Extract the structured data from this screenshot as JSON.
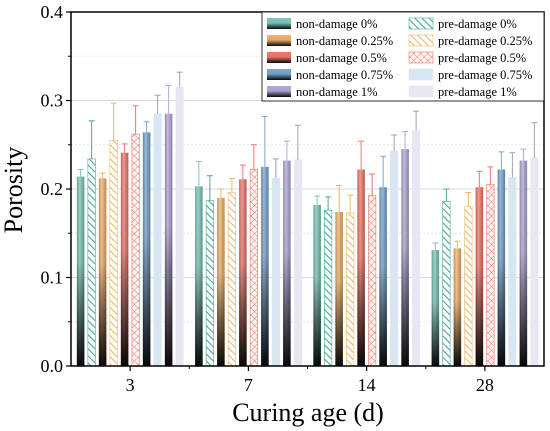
{
  "chart_data": {
    "type": "bar",
    "xlabel": "Curing age (d)",
    "ylabel": "Porosity",
    "ylim": [
      0.0,
      0.4
    ],
    "yticks": [
      "0.0",
      "0.1",
      "0.2",
      "0.3",
      "0.4"
    ],
    "grid": true,
    "legend_position": "top-right",
    "categories": [
      "3",
      "7",
      "14",
      "28"
    ],
    "series": [
      {
        "name": "non-damage 0%",
        "values": [
          0.214,
          0.203,
          0.182,
          0.131
        ],
        "errors": [
          0.008,
          0.028,
          0.01,
          0.008
        ],
        "color": "#7cc7ba",
        "pattern": "solid"
      },
      {
        "name": "pre-damage 0%",
        "values": [
          0.234,
          0.187,
          0.176,
          0.186
        ],
        "errors": [
          0.043,
          0.028,
          0.015,
          0.014
        ],
        "color": "#47a896",
        "pattern": "hatch"
      },
      {
        "name": "non-damage 0.25%",
        "values": [
          0.212,
          0.19,
          0.174,
          0.133
        ],
        "errors": [
          0.006,
          0.01,
          0.03,
          0.008
        ],
        "color": "#f3b36c",
        "pattern": "solid"
      },
      {
        "name": "pre-damage 0.25%",
        "values": [
          0.255,
          0.196,
          0.173,
          0.18
        ],
        "errors": [
          0.042,
          0.016,
          0.02,
          0.016
        ],
        "color": "#f0b86d",
        "pattern": "hatch"
      },
      {
        "name": "non-damage 0.5%",
        "values": [
          0.241,
          0.211,
          0.222,
          0.202
        ],
        "errors": [
          0.01,
          0.016,
          0.032,
          0.018
        ],
        "color": "#ee7a6c",
        "pattern": "solid"
      },
      {
        "name": "pre-damage 0.5%",
        "values": [
          0.262,
          0.222,
          0.193,
          0.205
        ],
        "errors": [
          0.032,
          0.028,
          0.024,
          0.02
        ],
        "color": "#e8786d",
        "pattern": "cross"
      },
      {
        "name": "non-damage 0.75%",
        "values": [
          0.264,
          0.225,
          0.202,
          0.222
        ],
        "errors": [
          0.012,
          0.057,
          0.035,
          0.02
        ],
        "color": "#78a6d0",
        "pattern": "solid"
      },
      {
        "name": "pre-damage 0.75%",
        "values": [
          0.285,
          0.212,
          0.243,
          0.213
        ],
        "errors": [
          0.021,
          0.022,
          0.018,
          0.028
        ],
        "color": "#d8e6f2",
        "pattern": "light"
      },
      {
        "name": "non-damage 1%",
        "values": [
          0.285,
          0.232,
          0.245,
          0.232
        ],
        "errors": [
          0.032,
          0.022,
          0.02,
          0.013
        ],
        "color": "#b2a9d6",
        "pattern": "solid"
      },
      {
        "name": "pre-damage 1%",
        "values": [
          0.315,
          0.233,
          0.266,
          0.235
        ],
        "errors": [
          0.017,
          0.039,
          0.022,
          0.04
        ],
        "color": "#e9e5f3",
        "pattern": "light"
      }
    ]
  }
}
